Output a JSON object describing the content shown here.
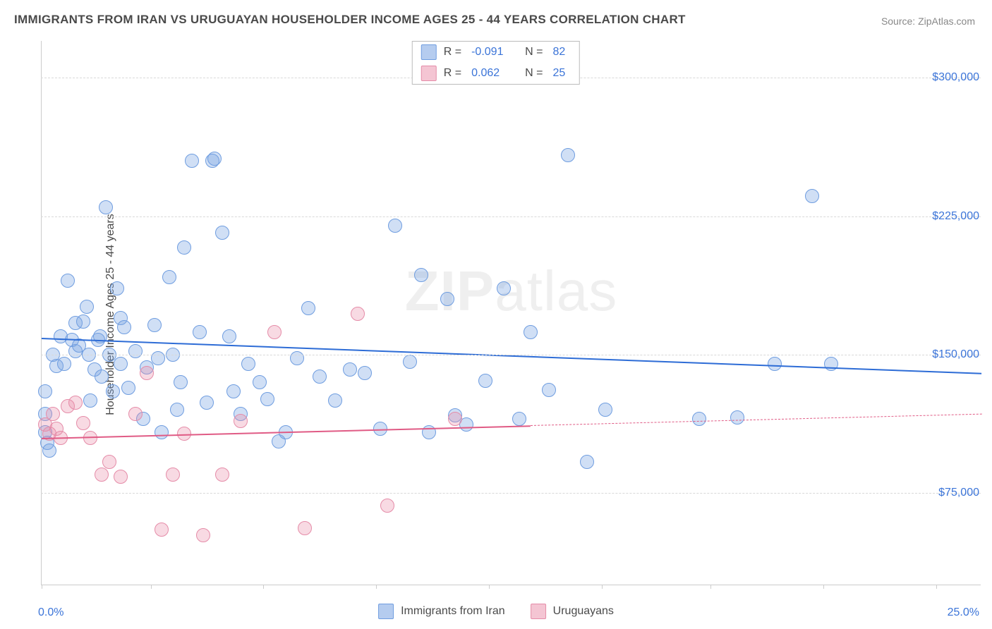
{
  "title": "IMMIGRANTS FROM IRAN VS URUGUAYAN HOUSEHOLDER INCOME AGES 25 - 44 YEARS CORRELATION CHART",
  "source": "Source: ZipAtlas.com",
  "ylabel": "Householder Income Ages 25 - 44 years",
  "watermark_a": "ZIP",
  "watermark_b": "atlas",
  "chart": {
    "type": "scatter",
    "xlim": [
      0,
      25
    ],
    "ylim": [
      25000,
      320000
    ],
    "y_gridlines": [
      75000,
      150000,
      225000,
      300000
    ],
    "ytick_labels": [
      "$75,000",
      "$150,000",
      "$225,000",
      "$300,000"
    ],
    "x_ticks": [
      0,
      2.9,
      5.9,
      8.9,
      11.9,
      14.9,
      17.8,
      20.8,
      23.8
    ],
    "x_axis_left_label": "0.0%",
    "x_axis_right_label": "25.0%",
    "background_color": "#ffffff",
    "grid_color": "#d8d8d8",
    "axis_color": "#cccccc",
    "series": [
      {
        "name": "Immigrants from Iran",
        "marker_fill": "rgba(120,163,226,0.35)",
        "marker_stroke": "#6f9de0",
        "marker_radius": 10,
        "line_color": "#2d6cd6",
        "line_width": 2.5,
        "R": "-0.091",
        "N": "82",
        "trend": {
          "x1": 0,
          "y1": 159000,
          "x2": 25,
          "y2": 140000,
          "dash_after_x": null
        },
        "points": [
          [
            0.1,
            108000
          ],
          [
            0.15,
            102000
          ],
          [
            0.1,
            130000
          ],
          [
            0.1,
            118000
          ],
          [
            0.2,
            98000
          ],
          [
            0.3,
            150000
          ],
          [
            0.4,
            144000
          ],
          [
            0.5,
            160000
          ],
          [
            0.6,
            145000
          ],
          [
            0.7,
            190000
          ],
          [
            0.8,
            158000
          ],
          [
            0.9,
            167000
          ],
          [
            0.9,
            152000
          ],
          [
            1.0,
            155000
          ],
          [
            1.1,
            168000
          ],
          [
            1.2,
            176000
          ],
          [
            1.25,
            150000
          ],
          [
            1.3,
            125000
          ],
          [
            1.4,
            142000
          ],
          [
            1.5,
            158000
          ],
          [
            1.55,
            160000
          ],
          [
            1.6,
            138000
          ],
          [
            1.7,
            230000
          ],
          [
            1.8,
            150000
          ],
          [
            1.9,
            130000
          ],
          [
            2.0,
            186000
          ],
          [
            2.1,
            170000
          ],
          [
            2.1,
            145000
          ],
          [
            2.2,
            165000
          ],
          [
            2.3,
            132000
          ],
          [
            2.5,
            152000
          ],
          [
            2.7,
            115000
          ],
          [
            2.8,
            143000
          ],
          [
            3.0,
            166000
          ],
          [
            3.1,
            148000
          ],
          [
            3.2,
            108000
          ],
          [
            3.4,
            192000
          ],
          [
            3.5,
            150000
          ],
          [
            3.6,
            120000
          ],
          [
            3.7,
            135000
          ],
          [
            3.8,
            208000
          ],
          [
            4.0,
            255000
          ],
          [
            4.2,
            162000
          ],
          [
            4.4,
            124000
          ],
          [
            4.55,
            255000
          ],
          [
            4.6,
            256000
          ],
          [
            4.8,
            216000
          ],
          [
            5.0,
            160000
          ],
          [
            5.1,
            130000
          ],
          [
            5.3,
            118000
          ],
          [
            5.5,
            145000
          ],
          [
            5.8,
            135000
          ],
          [
            6.0,
            126000
          ],
          [
            6.3,
            103000
          ],
          [
            6.5,
            108000
          ],
          [
            6.8,
            148000
          ],
          [
            7.1,
            175000
          ],
          [
            7.4,
            138000
          ],
          [
            7.8,
            125000
          ],
          [
            8.2,
            142000
          ],
          [
            8.6,
            140000
          ],
          [
            9.0,
            110000
          ],
          [
            9.4,
            220000
          ],
          [
            9.8,
            146000
          ],
          [
            10.1,
            193000
          ],
          [
            10.3,
            108000
          ],
          [
            10.8,
            180000
          ],
          [
            11.0,
            117000
          ],
          [
            11.3,
            112000
          ],
          [
            11.8,
            136000
          ],
          [
            12.3,
            186000
          ],
          [
            12.7,
            115000
          ],
          [
            13.0,
            162000
          ],
          [
            13.5,
            131000
          ],
          [
            14.0,
            258000
          ],
          [
            14.5,
            92000
          ],
          [
            15.0,
            120000
          ],
          [
            17.5,
            115000
          ],
          [
            18.5,
            116000
          ],
          [
            19.5,
            145000
          ],
          [
            20.5,
            236000
          ],
          [
            21.0,
            145000
          ]
        ]
      },
      {
        "name": "Uruguayans",
        "marker_fill": "rgba(233,140,168,0.32)",
        "marker_stroke": "#e58ca8",
        "marker_radius": 10,
        "line_color": "#e05b85",
        "line_width": 2.5,
        "R": "0.062",
        "N": "25",
        "trend": {
          "x1": 0,
          "y1": 105000,
          "x2": 25,
          "y2": 118000,
          "dash_after_x": 13
        },
        "points": [
          [
            0.1,
            112000
          ],
          [
            0.2,
            107000
          ],
          [
            0.3,
            118000
          ],
          [
            0.4,
            110000
          ],
          [
            0.5,
            105000
          ],
          [
            0.7,
            122000
          ],
          [
            0.9,
            124000
          ],
          [
            1.1,
            113000
          ],
          [
            1.3,
            105000
          ],
          [
            1.6,
            85000
          ],
          [
            1.8,
            92000
          ],
          [
            2.1,
            84000
          ],
          [
            2.5,
            118000
          ],
          [
            2.8,
            140000
          ],
          [
            3.2,
            55000
          ],
          [
            3.5,
            85000
          ],
          [
            3.8,
            107000
          ],
          [
            4.3,
            52000
          ],
          [
            4.8,
            85000
          ],
          [
            5.3,
            114000
          ],
          [
            6.2,
            162000
          ],
          [
            7.0,
            56000
          ],
          [
            8.4,
            172000
          ],
          [
            9.2,
            68000
          ],
          [
            11.0,
            115000
          ]
        ]
      }
    ]
  },
  "legend_bottom": [
    {
      "label": "Immigrants from Iran",
      "fill": "rgba(120,163,226,0.55)",
      "stroke": "#6f9de0"
    },
    {
      "label": "Uruguayans",
      "fill": "rgba(233,140,168,0.5)",
      "stroke": "#e58ca8"
    }
  ],
  "legend_top_swatches": [
    {
      "fill": "rgba(120,163,226,0.55)",
      "stroke": "#6f9de0"
    },
    {
      "fill": "rgba(233,140,168,0.5)",
      "stroke": "#e58ca8"
    }
  ],
  "label_R": "R =",
  "label_N": "N ="
}
